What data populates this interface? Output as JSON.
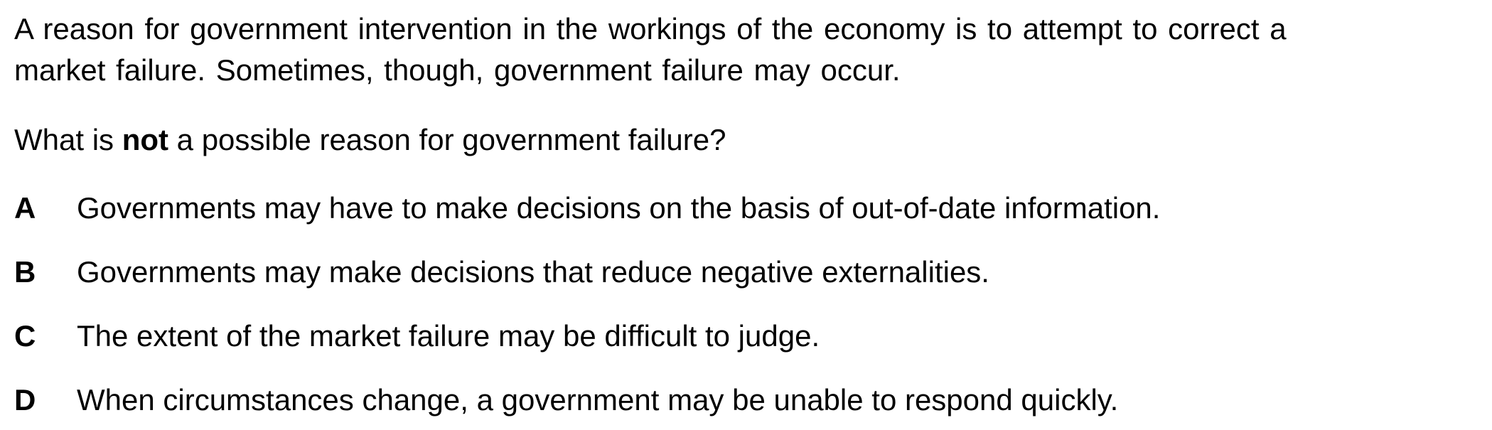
{
  "intro": {
    "line1": "A reason for government intervention in the workings of the economy is to attempt to correct a",
    "line2": "market failure. Sometimes, though, government failure may occur."
  },
  "question": {
    "before": "What is ",
    "emphasis": "not",
    "after": " a possible reason for government failure?"
  },
  "options": [
    {
      "letter": "A",
      "text": "Governments may have to make decisions on the basis of out-of-date information."
    },
    {
      "letter": "B",
      "text": "Governments may make decisions that reduce negative externalities."
    },
    {
      "letter": "C",
      "text": "The extent of the market failure may be difficult to judge."
    },
    {
      "letter": "D",
      "text": "When circumstances change, a government may be unable to respond quickly."
    }
  ]
}
